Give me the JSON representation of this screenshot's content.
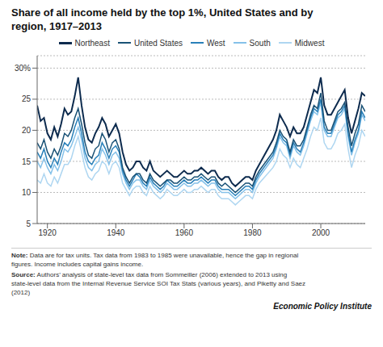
{
  "chart_data": {
    "type": "line",
    "title": "Share of all income held by the top 1%, United States and by\nregion, 1917–2013",
    "x": [
      1917,
      1918,
      1919,
      1920,
      1921,
      1922,
      1923,
      1924,
      1925,
      1926,
      1927,
      1928,
      1929,
      1930,
      1931,
      1932,
      1933,
      1934,
      1935,
      1936,
      1937,
      1938,
      1939,
      1940,
      1941,
      1942,
      1943,
      1944,
      1945,
      1946,
      1947,
      1948,
      1949,
      1950,
      1951,
      1952,
      1953,
      1954,
      1955,
      1956,
      1957,
      1958,
      1959,
      1960,
      1961,
      1962,
      1963,
      1964,
      1965,
      1966,
      1967,
      1968,
      1969,
      1970,
      1971,
      1972,
      1973,
      1974,
      1975,
      1976,
      1977,
      1978,
      1979,
      1980,
      1981,
      1982,
      1986,
      1987,
      1988,
      1989,
      1990,
      1991,
      1992,
      1993,
      1994,
      1995,
      1996,
      1997,
      1998,
      1999,
      2000,
      2001,
      2002,
      2003,
      2004,
      2005,
      2006,
      2007,
      2008,
      2009,
      2010,
      2011,
      2012,
      2013
    ],
    "series": [
      {
        "name": "Northeast",
        "color": "#0d2b4e",
        "values": [
          24.0,
          21.5,
          22.0,
          19.5,
          18.5,
          20.5,
          19.0,
          21.0,
          23.5,
          22.5,
          23.0,
          25.5,
          28.5,
          24.0,
          20.5,
          18.5,
          18.0,
          19.5,
          20.5,
          22.0,
          21.0,
          19.0,
          20.0,
          21.0,
          19.5,
          16.5,
          14.5,
          13.5,
          14.0,
          15.0,
          15.0,
          14.0,
          13.5,
          15.0,
          13.5,
          13.0,
          12.5,
          13.0,
          13.5,
          13.0,
          12.5,
          12.5,
          13.0,
          13.5,
          13.0,
          13.0,
          13.5,
          13.5,
          14.0,
          13.5,
          13.0,
          13.5,
          13.5,
          12.5,
          12.0,
          12.5,
          12.5,
          11.5,
          11.0,
          11.5,
          12.0,
          12.5,
          12.5,
          12.0,
          13.5,
          14.5,
          18.5,
          20.0,
          22.5,
          21.5,
          20.5,
          19.0,
          20.5,
          19.5,
          19.5,
          20.5,
          22.5,
          24.5,
          26.5,
          26.0,
          28.5,
          24.0,
          22.5,
          22.5,
          23.5,
          24.5,
          25.5,
          26.5,
          22.0,
          19.5,
          21.5,
          23.5,
          26.0,
          25.5
        ]
      },
      {
        "name": "United States",
        "color": "#1a5276",
        "values": [
          18.0,
          17.0,
          18.5,
          16.5,
          15.5,
          17.0,
          16.0,
          17.5,
          19.5,
          19.0,
          20.0,
          22.0,
          23.5,
          21.0,
          18.0,
          16.0,
          15.5,
          17.0,
          17.5,
          19.5,
          18.5,
          16.5,
          18.0,
          18.5,
          17.0,
          14.0,
          12.5,
          11.5,
          12.5,
          13.0,
          13.0,
          12.0,
          11.5,
          13.0,
          12.0,
          11.5,
          11.0,
          11.5,
          12.0,
          12.0,
          11.5,
          11.5,
          12.0,
          12.5,
          12.0,
          12.0,
          12.5,
          12.5,
          13.0,
          12.5,
          12.0,
          12.5,
          12.5,
          11.5,
          11.0,
          11.5,
          11.0,
          10.5,
          10.0,
          10.5,
          11.0,
          11.5,
          11.5,
          11.0,
          12.5,
          13.5,
          16.5,
          18.0,
          20.0,
          19.0,
          18.5,
          16.5,
          18.5,
          17.5,
          17.5,
          18.5,
          20.5,
          22.5,
          24.0,
          23.5,
          26.0,
          21.5,
          20.0,
          20.0,
          21.5,
          23.0,
          23.5,
          24.5,
          20.5,
          17.5,
          19.5,
          21.0,
          24.0,
          23.0
        ]
      },
      {
        "name": "West",
        "color": "#2980b9",
        "values": [
          16.5,
          15.5,
          17.0,
          15.0,
          14.0,
          15.5,
          14.5,
          16.5,
          18.0,
          17.5,
          18.5,
          20.5,
          22.0,
          19.5,
          16.5,
          15.0,
          14.5,
          15.5,
          16.0,
          18.0,
          17.0,
          15.5,
          17.0,
          17.5,
          16.5,
          13.5,
          12.0,
          11.0,
          12.0,
          13.0,
          12.5,
          11.5,
          11.0,
          12.5,
          11.5,
          11.0,
          10.5,
          11.0,
          12.0,
          11.5,
          11.0,
          11.0,
          11.5,
          12.0,
          11.5,
          11.5,
          12.0,
          12.0,
          12.5,
          12.0,
          11.5,
          12.0,
          12.0,
          11.0,
          10.5,
          10.5,
          10.5,
          10.0,
          9.5,
          10.0,
          10.5,
          11.0,
          11.0,
          10.5,
          12.0,
          13.0,
          16.0,
          17.5,
          19.5,
          18.5,
          18.0,
          16.0,
          18.0,
          17.0,
          16.5,
          18.0,
          20.0,
          22.0,
          23.5,
          23.0,
          25.0,
          20.5,
          19.5,
          19.5,
          21.0,
          22.5,
          23.0,
          24.0,
          19.5,
          16.5,
          18.5,
          20.0,
          23.0,
          22.0
        ]
      },
      {
        "name": "South",
        "color": "#85c1e9",
        "values": [
          15.0,
          14.0,
          15.5,
          14.0,
          13.0,
          14.5,
          13.5,
          15.0,
          17.0,
          16.5,
          17.5,
          19.0,
          20.5,
          18.5,
          15.5,
          14.0,
          13.5,
          14.5,
          15.0,
          17.0,
          16.0,
          14.5,
          16.0,
          16.5,
          15.5,
          13.0,
          11.5,
          10.5,
          11.5,
          12.0,
          12.0,
          11.0,
          10.5,
          12.0,
          11.0,
          10.5,
          10.0,
          10.5,
          11.5,
          11.0,
          10.5,
          10.5,
          11.0,
          11.5,
          11.0,
          11.0,
          11.5,
          11.5,
          12.0,
          11.5,
          11.0,
          11.5,
          11.5,
          10.5,
          10.0,
          10.0,
          10.0,
          9.5,
          9.0,
          9.5,
          10.0,
          10.5,
          10.5,
          10.0,
          11.5,
          12.5,
          15.5,
          17.0,
          19.0,
          18.0,
          17.5,
          15.5,
          17.5,
          16.5,
          16.0,
          17.5,
          19.5,
          21.5,
          23.0,
          22.5,
          24.5,
          20.0,
          19.0,
          19.0,
          20.5,
          22.0,
          22.5,
          23.5,
          19.0,
          16.0,
          18.0,
          19.5,
          22.5,
          21.5
        ]
      },
      {
        "name": "Midwest",
        "color": "#aed6f1",
        "values": [
          12.0,
          11.5,
          13.0,
          11.5,
          11.0,
          12.5,
          11.5,
          13.0,
          14.5,
          14.5,
          15.5,
          17.5,
          19.0,
          16.5,
          14.0,
          12.5,
          12.0,
          13.0,
          13.5,
          15.0,
          14.5,
          13.0,
          14.5,
          15.0,
          14.0,
          11.5,
          10.5,
          9.5,
          10.5,
          11.0,
          11.0,
          10.0,
          9.5,
          11.0,
          10.0,
          9.5,
          9.0,
          9.5,
          10.5,
          10.0,
          9.5,
          9.5,
          10.0,
          10.5,
          10.0,
          10.0,
          10.5,
          10.5,
          11.0,
          10.5,
          10.0,
          10.5,
          10.5,
          9.5,
          9.0,
          9.0,
          9.0,
          8.5,
          8.0,
          8.5,
          9.0,
          9.5,
          9.5,
          9.0,
          10.5,
          11.5,
          14.0,
          15.0,
          17.0,
          16.0,
          15.5,
          14.0,
          15.5,
          14.5,
          14.0,
          15.5,
          17.0,
          19.0,
          20.5,
          20.0,
          22.0,
          18.0,
          17.0,
          17.0,
          18.0,
          19.5,
          20.0,
          21.0,
          17.0,
          14.0,
          16.0,
          17.5,
          20.0,
          19.0
        ]
      }
    ],
    "xlim": [
      1917,
      2013
    ],
    "xticks": [
      1920,
      1940,
      1960,
      1980,
      2000
    ],
    "ylim": [
      5,
      32
    ],
    "yticks": [
      5,
      10,
      15,
      20,
      25,
      {
        "value": 30,
        "label": "30%"
      }
    ],
    "grid": true,
    "legend": "top",
    "notes": [
      "Note: Data are for tax units. Tax data from 1983 to 1985 were unavailable, hence the gap in regional\nfigures. Income includes capital gains income.",
      "Source: Authors’ analysis of state-level tax data from Sommeiller (2006) extended to 2013 using\nstate-level data from the Internal Revenue Service SOI Tax Stats (various years), and Piketty and Saez\n(2012)"
    ],
    "attribution": "Economic Policy Institute"
  }
}
